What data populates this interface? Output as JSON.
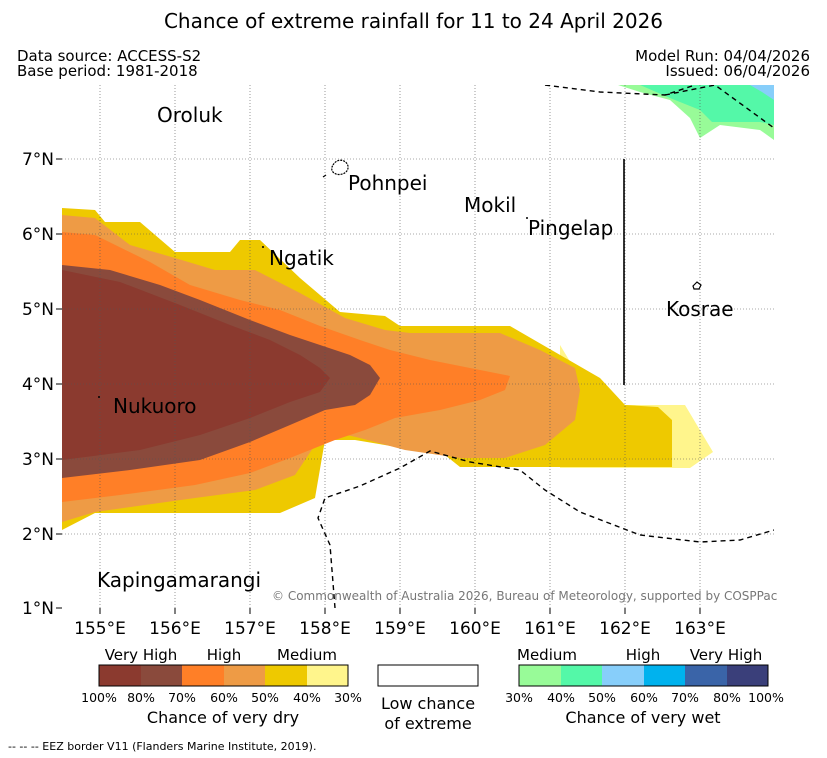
{
  "title": "Chance of extreme rainfall for 11 to 24 April 2026",
  "header": {
    "data_source": "Data source: ACCESS-S2",
    "base_period": "Base period: 1981-2018",
    "model_run": "Model Run: 04/04/2026",
    "issued": "Issued: 06/04/2026"
  },
  "map": {
    "lon_labels": [
      "155°E",
      "156°E",
      "157°E",
      "158°E",
      "159°E",
      "160°E",
      "161°E",
      "162°E",
      "163°E"
    ],
    "lat_labels": [
      "1°N",
      "2°N",
      "3°N",
      "4°N",
      "5°N",
      "6°N",
      "7°N"
    ],
    "places": [
      {
        "name": "Oroluk"
      },
      {
        "name": "Pohnpei"
      },
      {
        "name": "Mokil"
      },
      {
        "name": "Pingelap"
      },
      {
        "name": "Ngatik"
      },
      {
        "name": "Kosrae"
      },
      {
        "name": "Nukuoro"
      },
      {
        "name": "Kapingamarangi"
      }
    ],
    "copyright": "© Commonwealth of Australia 2026, Bureau of Meteorology, supported by COSPPac"
  },
  "legend_dry": {
    "categories": [
      "Very High",
      "High",
      "Medium"
    ],
    "ticks": [
      "100%",
      "80%",
      "70%",
      "60%",
      "50%",
      "40%",
      "30%"
    ],
    "title": "Chance of very dry",
    "colors": [
      "#8b3a2f",
      "#8a4a3c",
      "#ff7f27",
      "#ee9b45",
      "#eec900",
      "#fff58c"
    ]
  },
  "legend_low": {
    "line1": "Low chance",
    "line2": "of extreme"
  },
  "legend_wet": {
    "categories": [
      "Medium",
      "High",
      "Very High"
    ],
    "ticks": [
      "30%",
      "40%",
      "50%",
      "60%",
      "70%",
      "80%",
      "100%"
    ],
    "title": "Chance of very wet",
    "colors": [
      "#98fb98",
      "#54f8a8",
      "#87cefa",
      "#00b2ee",
      "#3a64a8",
      "#3a3f7a"
    ]
  },
  "footnote": "-- -- -- EEZ border V11 (Flanders Marine Institute, 2019)."
}
